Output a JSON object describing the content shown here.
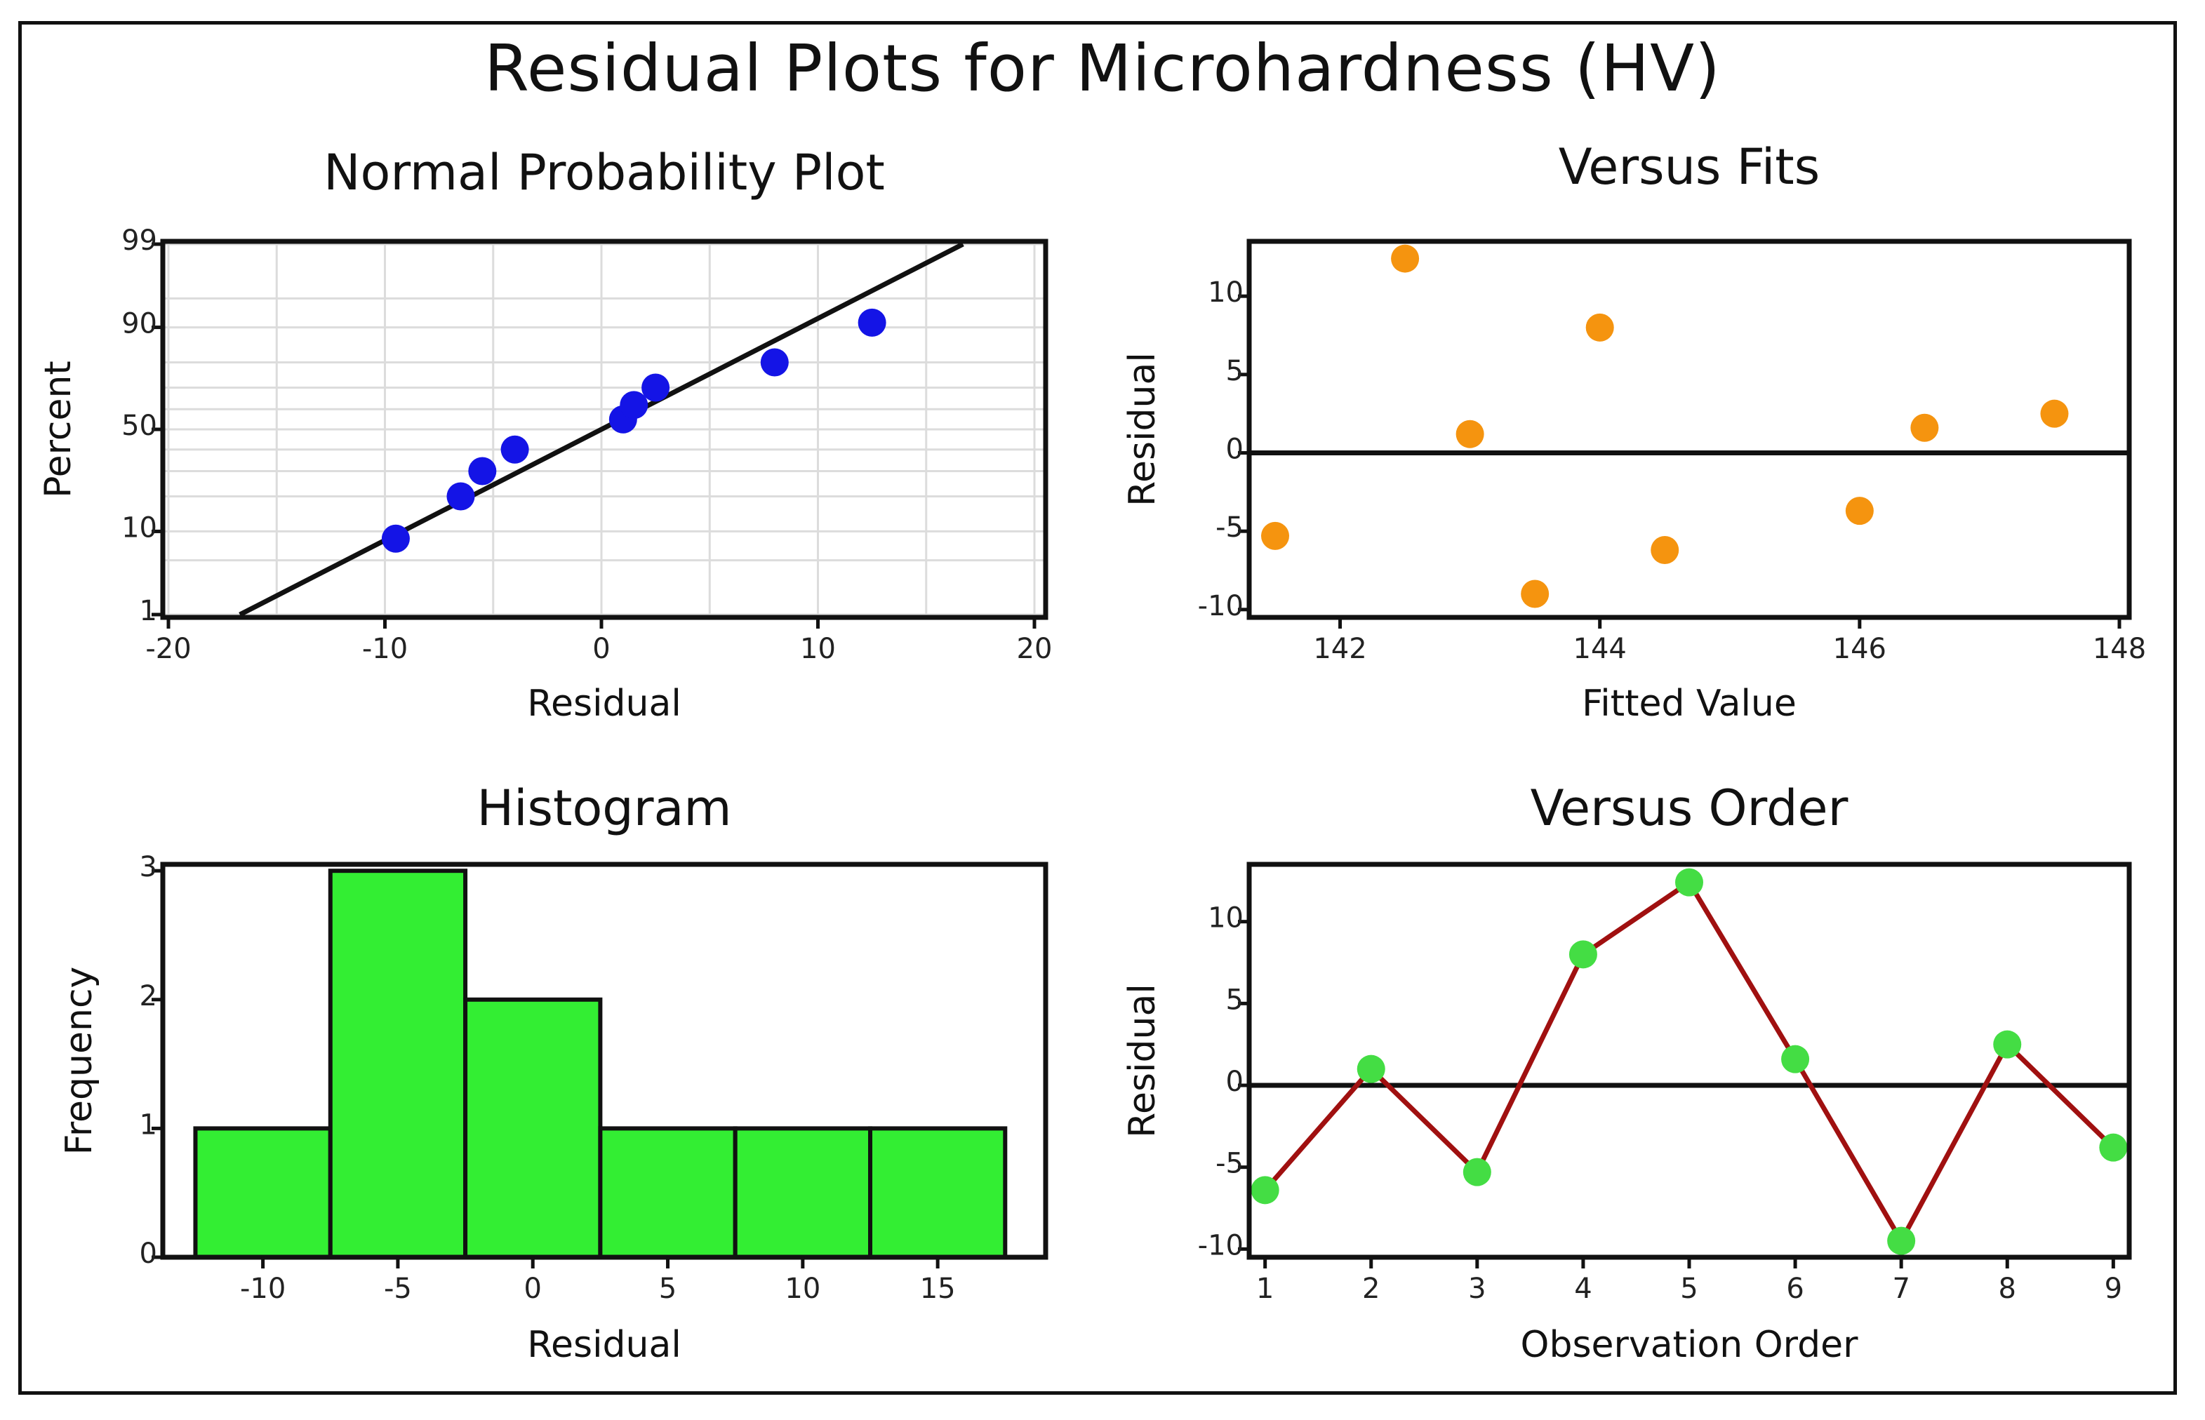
{
  "figure": {
    "title": "Residual Plots for Microhardness (HV)"
  },
  "chart_data": [
    {
      "id": "npp",
      "type": "scatter",
      "title": "Normal Probability Plot",
      "xlabel": "Residual",
      "ylabel": "Percent",
      "xlim": [
        -20,
        20
      ],
      "xticks": [
        -20,
        -10,
        0,
        10,
        20
      ],
      "xtick_labels": [
        "-20",
        "-10",
        "0",
        "10",
        "20"
      ],
      "yscale": "normal-probability",
      "yticks": [
        1,
        10,
        50,
        90,
        99
      ],
      "ytick_labels": [
        "1",
        "10",
        "50",
        "90",
        "99"
      ],
      "grid_x": [
        -20,
        -15,
        -10,
        -5,
        0,
        5,
        10,
        15,
        20
      ],
      "grid_y": [
        1,
        5,
        10,
        20,
        30,
        40,
        50,
        60,
        70,
        80,
        90,
        95,
        99
      ],
      "grid": true,
      "points": [
        {
          "x": -9.5,
          "y": 8.5
        },
        {
          "x": -6.5,
          "y": 20
        },
        {
          "x": -5.5,
          "y": 30
        },
        {
          "x": -4.0,
          "y": 40
        },
        {
          "x": 1.0,
          "y": 55
        },
        {
          "x": 1.5,
          "y": 62
        },
        {
          "x": 2.5,
          "y": 70
        },
        {
          "x": 8.0,
          "y": 80
        },
        {
          "x": 12.5,
          "y": 91
        }
      ],
      "fit_line": {
        "x1": -16.7,
        "x2": 16.7,
        "y1": 1,
        "y2": 99
      },
      "point_color": "#1414e6",
      "line_color": "#111111"
    },
    {
      "id": "vfits",
      "type": "scatter",
      "title": "Versus Fits",
      "xlabel": "Fitted Value",
      "ylabel": "Residual",
      "xlim": [
        141.3,
        148
      ],
      "ylim": [
        -10.5,
        13.5
      ],
      "xticks": [
        142,
        144,
        146,
        148
      ],
      "xtick_labels": [
        "142",
        "144",
        "146",
        "148"
      ],
      "yticks": [
        -10,
        -5,
        0,
        5,
        10
      ],
      "ytick_labels": [
        "-10",
        "-5",
        "0",
        "5",
        "10"
      ],
      "reference_line": 0,
      "grid": false,
      "points": [
        {
          "x": 141.5,
          "y": -5.3
        },
        {
          "x": 142.5,
          "y": 12.4
        },
        {
          "x": 143.0,
          "y": 1.2
        },
        {
          "x": 143.5,
          "y": -9.0
        },
        {
          "x": 144.0,
          "y": 8.0
        },
        {
          "x": 144.5,
          "y": -6.2
        },
        {
          "x": 146.0,
          "y": -3.7
        },
        {
          "x": 146.5,
          "y": 1.6
        },
        {
          "x": 147.5,
          "y": 2.5
        }
      ],
      "point_color": "#f5940f"
    },
    {
      "id": "hist",
      "type": "bar",
      "title": "Histogram",
      "xlabel": "Residual",
      "ylabel": "Frequency",
      "xlim": [
        -13.5,
        19
      ],
      "ylim": [
        0,
        3.05
      ],
      "xticks": [
        -10,
        -5,
        0,
        5,
        10,
        15
      ],
      "xtick_labels": [
        "-10",
        "-5",
        "0",
        "5",
        "10",
        "15"
      ],
      "yticks": [
        0,
        1,
        2,
        3
      ],
      "ytick_labels": [
        "0",
        "1",
        "2",
        "3"
      ],
      "bin_edges": [
        -12.5,
        -7.5,
        -2.5,
        2.5,
        7.5,
        12.5,
        17.5
      ],
      "values": [
        1,
        3,
        2,
        1,
        1,
        1
      ],
      "bar_color": "#33ee33"
    },
    {
      "id": "vorder",
      "type": "line",
      "title": "Versus Order",
      "xlabel": "Observation Order",
      "ylabel": "Residual",
      "xlim": [
        0.85,
        9.15
      ],
      "ylim": [
        -10.5,
        13.5
      ],
      "xticks": [
        1,
        2,
        3,
        4,
        5,
        6,
        7,
        8,
        9
      ],
      "xtick_labels": [
        "1",
        "2",
        "3",
        "4",
        "5",
        "6",
        "7",
        "8",
        "9"
      ],
      "yticks": [
        -10,
        -5,
        0,
        5,
        10
      ],
      "ytick_labels": [
        "-10",
        "-5",
        "0",
        "5",
        "10"
      ],
      "reference_line": 0,
      "x": [
        1,
        2,
        3,
        4,
        5,
        6,
        7,
        8,
        9
      ],
      "values": [
        -6.4,
        1.0,
        -5.3,
        8.0,
        12.4,
        1.6,
        -9.5,
        2.5,
        -3.8
      ],
      "line_color": "#a01010",
      "point_color": "#44dd44"
    }
  ]
}
